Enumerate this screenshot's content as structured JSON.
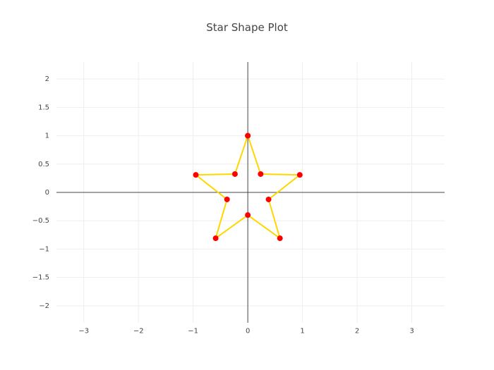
{
  "chart_data": {
    "type": "scatter",
    "title": "Star Shape Plot",
    "xlabel": "",
    "ylabel": "",
    "xlim": [
      -3.5,
      3.6
    ],
    "ylim": [
      -2.3,
      2.3
    ],
    "x_ticks": [
      -3,
      -2,
      -1,
      0,
      1,
      2,
      3
    ],
    "x_tick_labels": [
      "−3",
      "−2",
      "−1",
      "0",
      "1",
      "2",
      "3"
    ],
    "y_ticks": [
      -2,
      -1.5,
      -1,
      -0.5,
      0,
      0.5,
      1,
      1.5,
      2
    ],
    "y_tick_labels": [
      "−2",
      "−1.5",
      "−1",
      "−0.5",
      "0",
      "0.5",
      "1",
      "1.5",
      "2"
    ],
    "grid": true,
    "zero_lines": true,
    "series": [
      {
        "mode": "lines+markers",
        "line_color": "#FFD700",
        "marker_color": "#FF0000",
        "x": [
          0,
          0.235,
          0.951,
          0.38,
          0.588,
          0,
          -0.588,
          -0.38,
          -0.951,
          -0.235,
          0
        ],
        "y": [
          1,
          0.324,
          0.309,
          -0.124,
          -0.809,
          -0.4,
          -0.809,
          -0.124,
          0.309,
          0.324,
          1
        ]
      }
    ]
  }
}
